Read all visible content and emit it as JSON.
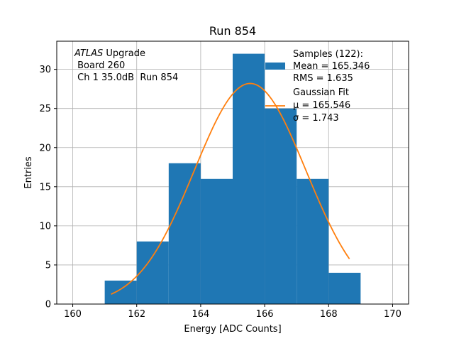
{
  "chart_data": {
    "type": "bar",
    "title": "Run 854",
    "xlabel": "Energy [ADC Counts]",
    "ylabel": "Entries",
    "xlim": [
      159.5,
      170.5
    ],
    "ylim": [
      0,
      33.6
    ],
    "x_ticks": [
      160,
      162,
      164,
      166,
      168,
      170
    ],
    "y_ticks": [
      0,
      5,
      10,
      15,
      20,
      25,
      30
    ],
    "grid": true,
    "bar_color": "#1f77b4",
    "fit_color": "#ff7f0e",
    "histogram": {
      "bin_edges": [
        161,
        162,
        163,
        164,
        165,
        166,
        167,
        168,
        169
      ],
      "counts": [
        3,
        8,
        18,
        16,
        32,
        25,
        16,
        4
      ]
    },
    "fit": {
      "name": "Gaussian Fit",
      "mu": 165.546,
      "sigma": 1.743,
      "amplitude": 28.2,
      "x_range": [
        161.2,
        168.65
      ]
    },
    "annotation": {
      "line1_italic": "ATLAS",
      "line1_rest": " Upgrade",
      "line2": " Board 260",
      "line3": " Ch 1 35.0dB  Run 854"
    },
    "legend": {
      "position": "top-right",
      "samples_label": "Samples (122):",
      "samples_mean": "Mean = 165.346",
      "samples_rms": "RMS = 1.635",
      "fit_label": "Gaussian Fit",
      "fit_mu": "μ = 165.546",
      "fit_sigma": "σ = 1.743"
    }
  }
}
